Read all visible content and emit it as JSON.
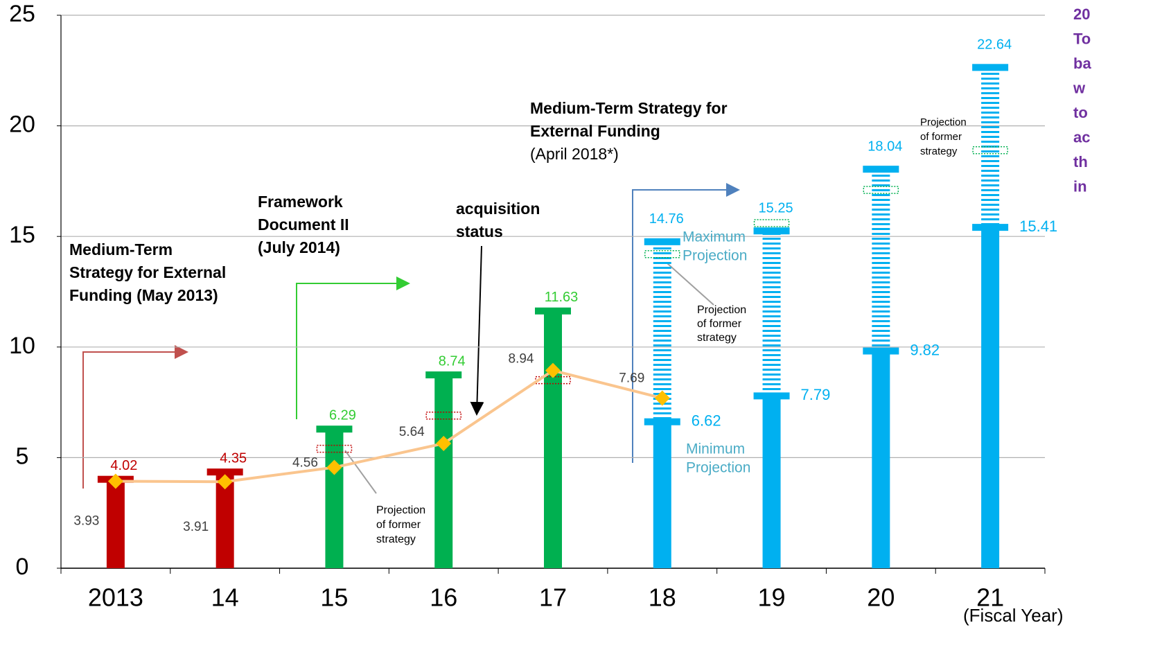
{
  "chart_data": {
    "type": "bar",
    "categories": [
      "2013",
      "14",
      "15",
      "16",
      "17",
      "18",
      "19",
      "20",
      "21"
    ],
    "values": [
      4.02,
      4.35,
      6.29,
      8.74,
      11.63,
      6.62,
      7.79,
      9.82,
      15.41
    ],
    "max_values": [
      null,
      null,
      null,
      null,
      null,
      14.76,
      15.25,
      18.04,
      22.64
    ],
    "former_projection": [
      null,
      null,
      5.4,
      6.9,
      8.5,
      14.2,
      15.6,
      17.1,
      18.9
    ],
    "acquisition": [
      3.93,
      3.91,
      4.56,
      5.64,
      8.94,
      7.69,
      null,
      null,
      null
    ],
    "colors": [
      "#c00000",
      "#c00000",
      "#00b050",
      "#00b050",
      "#00b050",
      "#00b0f0",
      "#00b0f0",
      "#00b0f0",
      "#00b0f0"
    ],
    "label_colors": [
      "#c00000",
      "#c00000",
      "#33cc33",
      "#33cc33",
      "#33cc33",
      "#00b0f0",
      "#00b0f0",
      "#00b0f0",
      "#00b0f0"
    ],
    "former_colors": [
      "#c00000",
      "#c00000",
      "#c00000",
      "#c00000",
      "#c00000",
      "#00b050",
      "#00b050",
      "#00b050",
      "#00b050"
    ],
    "line_color": "#fac58e",
    "marker_color": "#ffc000",
    "ylim": [
      0,
      25
    ],
    "yticks": [
      0,
      5,
      10,
      15,
      20,
      25
    ],
    "grid": true,
    "x_label": "(Fiscal Year)",
    "annotations": [
      {
        "lines": [
          "Medium-Term",
          "Strategy for External",
          "Funding (May 2013)"
        ]
      },
      {
        "lines": [
          "Framework",
          "Document II",
          "(July 2014)"
        ]
      },
      {
        "lines": [
          "acquisition",
          "status"
        ]
      },
      {
        "lines": [
          "Medium-Term Strategy for",
          "External Funding",
          "(April 2018*)"
        ]
      },
      {
        "lines": [
          "Maximum",
          "Projection"
        ]
      },
      {
        "lines": [
          "Minimum",
          "Projection"
        ]
      },
      {
        "lines": [
          "Projection",
          "of former",
          "strategy"
        ]
      },
      {
        "lines": [
          "Projection",
          "of former",
          "strategy"
        ]
      },
      {
        "lines": [
          "Projection",
          "of former",
          "strategy"
        ]
      },
      {
        "lines": [
          "20",
          "To",
          "ba",
          "w",
          "to",
          "ac",
          "th",
          "in"
        ]
      }
    ]
  }
}
